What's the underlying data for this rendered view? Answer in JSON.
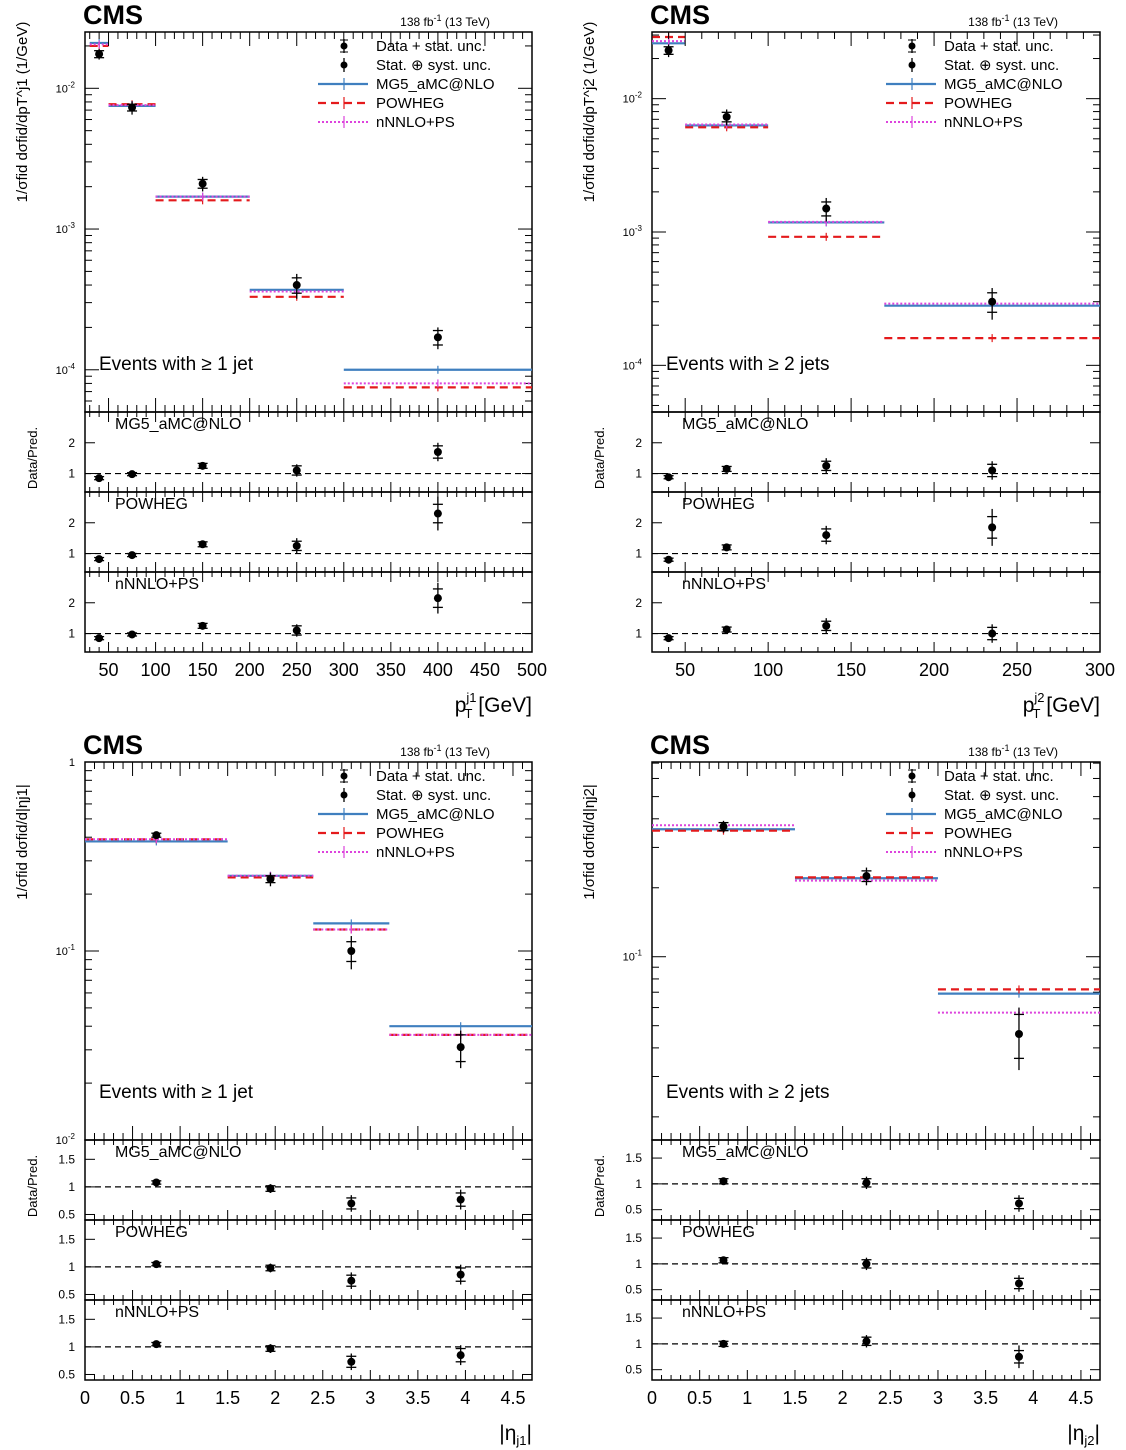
{
  "colors": {
    "data": "#000000",
    "mg5": "#3f7fbf",
    "powheg": "#e41a1c",
    "nnlo": "#dd44dd",
    "ratio_ref": "#000000"
  },
  "chart_data": [
    {
      "type": "scatter",
      "cms_label": "CMS",
      "lumi_main": "138 fb",
      "lumi_sup": "-1",
      "lumi_rest": " (13 TeV)",
      "annotation": "Events with ≥ 1 jet",
      "xlabel_main": "p",
      "xlabel_sup": "j1",
      "xlabel_sub": "T",
      "xlabel_unit": " [GeV]",
      "ylabel": "1/σfid dσfid/dpT^j1 (1/GeV)",
      "ratio_ylabel": "Data/Pred.",
      "xlim": [
        25,
        500
      ],
      "ylim_log": [
        -4.3,
        -1.6
      ],
      "x_ticks": [
        50,
        100,
        150,
        200,
        250,
        300,
        350,
        400,
        450,
        500
      ],
      "x_tick_labels": [
        "50",
        "100",
        "150",
        "200",
        "250",
        "300",
        "350",
        "400",
        "450",
        "500"
      ],
      "y_ticks": [
        {
          "exp": -4,
          "label": "10",
          "sup": "-4"
        },
        {
          "exp": -3,
          "label": "10",
          "sup": "-3"
        },
        {
          "exp": -2,
          "label": "10",
          "sup": "-2"
        }
      ],
      "bins": [
        [
          30,
          50
        ],
        [
          50,
          100
        ],
        [
          100,
          200
        ],
        [
          200,
          300
        ],
        [
          300,
          500
        ]
      ],
      "data": {
        "x": [
          40,
          75,
          150,
          250,
          400
        ],
        "y": [
          0.0175,
          0.0073,
          0.0021,
          0.0004,
          0.00017
        ],
        "stat": [
          0.001,
          0.0004,
          0.00015,
          5e-05,
          2e-05
        ],
        "tot": [
          0.0015,
          0.0008,
          0.00025,
          8e-05,
          3e-05
        ]
      },
      "predictions": [
        {
          "name": "MG5_aMC@NLO",
          "values": [
            0.021,
            0.0075,
            0.0017,
            0.00037,
            0.0001
          ]
        },
        {
          "name": "POWHEG",
          "values": [
            0.02,
            0.0077,
            0.0016,
            0.00033,
            7.5e-05
          ]
        },
        {
          "name": "nNNLO+PS",
          "values": [
            0.0205,
            0.0076,
            0.0017,
            0.00036,
            8e-05
          ]
        }
      ],
      "legend": [
        "Data + stat. unc.",
        "Stat. ⊕ syst. unc.",
        "MG5_aMC@NLO",
        "POWHEG",
        "nNNLO+PS"
      ],
      "ratio_ylim": [
        0.4,
        3.0
      ],
      "ratio_yticks": [
        1,
        2
      ],
      "ratios": [
        {
          "label": "MG5_aMC@NLO",
          "values": [
            0.85,
            0.98,
            1.25,
            1.1,
            1.7
          ],
          "stat": [
            0.05,
            0.05,
            0.08,
            0.15,
            0.2
          ],
          "tot": [
            0.07,
            0.08,
            0.12,
            0.2,
            0.3
          ]
        },
        {
          "label": "POWHEG",
          "values": [
            0.82,
            0.95,
            1.3,
            1.25,
            2.3
          ],
          "stat": [
            0.05,
            0.05,
            0.08,
            0.15,
            0.3
          ],
          "tot": [
            0.07,
            0.08,
            0.12,
            0.25,
            0.55
          ]
        },
        {
          "label": "nNNLO+PS",
          "values": [
            0.85,
            0.97,
            1.25,
            1.1,
            2.15
          ],
          "stat": [
            0.05,
            0.05,
            0.08,
            0.15,
            0.3
          ],
          "tot": [
            0.07,
            0.08,
            0.12,
            0.2,
            0.5
          ]
        }
      ]
    },
    {
      "type": "scatter",
      "cms_label": "CMS",
      "lumi_main": "138 fb",
      "lumi_sup": "-1",
      "lumi_rest": " (13 TeV)",
      "annotation": "Events with ≥ 2 jets",
      "xlabel_main": "p",
      "xlabel_sup": "j2",
      "xlabel_sub": "T",
      "xlabel_unit": " [GeV]",
      "ylabel": "1/σfid dσfid/dpT^j2 (1/GeV)",
      "ratio_ylabel": "Data/Pred.",
      "xlim": [
        30,
        300
      ],
      "ylim_log": [
        -4.35,
        -1.5
      ],
      "x_ticks": [
        50,
        100,
        150,
        200,
        250,
        300
      ],
      "x_tick_labels": [
        "50",
        "100",
        "150",
        "200",
        "250",
        "300"
      ],
      "y_ticks": [
        {
          "exp": -4,
          "label": "10",
          "sup": "-4"
        },
        {
          "exp": -3,
          "label": "10",
          "sup": "-3"
        },
        {
          "exp": -2,
          "label": "10",
          "sup": "-2"
        }
      ],
      "bins": [
        [
          30,
          50
        ],
        [
          50,
          100
        ],
        [
          100,
          170
        ],
        [
          170,
          300
        ]
      ],
      "data": {
        "x": [
          40,
          75,
          135,
          235
        ],
        "y": [
          0.023,
          0.0073,
          0.0015,
          0.0003
        ],
        "stat": [
          0.0015,
          0.0006,
          0.00018,
          5e-05
        ],
        "tot": [
          0.0025,
          0.001,
          0.0003,
          8e-05
        ]
      },
      "predictions": [
        {
          "name": "MG5_aMC@NLO",
          "values": [
            0.026,
            0.0063,
            0.00118,
            0.00028
          ]
        },
        {
          "name": "POWHEG",
          "values": [
            0.029,
            0.0061,
            0.00092,
            0.00016
          ]
        },
        {
          "name": "nNNLO+PS",
          "values": [
            0.027,
            0.0064,
            0.00119,
            0.00029
          ]
        }
      ],
      "legend": [
        "Data + stat. unc.",
        "Stat. ⊕ syst. unc.",
        "MG5_aMC@NLO",
        "POWHEG",
        "nNNLO+PS"
      ],
      "ratio_ylim": [
        0.4,
        3.0
      ],
      "ratio_yticks": [
        1,
        2
      ],
      "ratios": [
        {
          "label": "MG5_aMC@NLO",
          "values": [
            0.88,
            1.15,
            1.25,
            1.1
          ],
          "stat": [
            0.05,
            0.08,
            0.15,
            0.2
          ],
          "tot": [
            0.07,
            0.12,
            0.25,
            0.3
          ]
        },
        {
          "label": "POWHEG",
          "values": [
            0.8,
            1.2,
            1.6,
            1.85
          ],
          "stat": [
            0.05,
            0.08,
            0.2,
            0.35
          ],
          "tot": [
            0.07,
            0.12,
            0.3,
            0.6
          ]
        },
        {
          "label": "nNNLO+PS",
          "values": [
            0.85,
            1.13,
            1.25,
            1.0
          ],
          "stat": [
            0.05,
            0.08,
            0.15,
            0.2
          ],
          "tot": [
            0.07,
            0.12,
            0.25,
            0.3
          ]
        }
      ]
    },
    {
      "type": "scatter",
      "cms_label": "CMS",
      "lumi_main": "138 fb",
      "lumi_sup": "-1",
      "lumi_rest": " (13 TeV)",
      "annotation": "Events with ≥ 1 jet",
      "xlabel_main": "|η",
      "xlabel_sup": "",
      "xlabel_sub": "j1",
      "xlabel_unit": "|",
      "ylabel": "1/σfid dσfid/d|ηj1|",
      "ratio_ylabel": "Data/Pred.",
      "xlim": [
        0,
        4.7
      ],
      "ylim_log": [
        -2.0,
        0.0
      ],
      "x_ticks": [
        0,
        0.5,
        1,
        1.5,
        2,
        2.5,
        3,
        3.5,
        4,
        4.5
      ],
      "x_tick_labels": [
        "0",
        "0.5",
        "1",
        "1.5",
        "2",
        "2.5",
        "3",
        "3.5",
        "4",
        "4.5"
      ],
      "y_ticks": [
        {
          "exp": -2,
          "label": "10",
          "sup": "-2"
        },
        {
          "exp": -1,
          "label": "10",
          "sup": "-1"
        },
        {
          "exp": 0,
          "label": "1",
          "sup": ""
        }
      ],
      "bins": [
        [
          0,
          1.5
        ],
        [
          1.5,
          2.4
        ],
        [
          2.4,
          3.2
        ],
        [
          3.2,
          4.7
        ]
      ],
      "data": {
        "x": [
          0.75,
          1.95,
          2.8,
          3.95
        ],
        "y": [
          0.41,
          0.24,
          0.1,
          0.031
        ],
        "stat": [
          0.01,
          0.01,
          0.012,
          0.005
        ],
        "tot": [
          0.015,
          0.02,
          0.02,
          0.007
        ]
      },
      "predictions": [
        {
          "name": "MG5_aMC@NLO",
          "values": [
            0.38,
            0.25,
            0.14,
            0.04
          ]
        },
        {
          "name": "POWHEG",
          "values": [
            0.39,
            0.245,
            0.13,
            0.036
          ]
        },
        {
          "name": "nNNLO+PS",
          "values": [
            0.39,
            0.25,
            0.13,
            0.036
          ]
        }
      ],
      "legend": [
        "Data + stat. unc.",
        "Stat. ⊕ syst. unc.",
        "MG5_aMC@NLO",
        "POWHEG",
        "nNNLO+PS"
      ],
      "ratio_ylim": [
        0.4,
        1.85
      ],
      "ratio_yticks": [
        0.5,
        1,
        1.5
      ],
      "ratio_ytick_labels": [
        "0.5",
        "1",
        "1.5"
      ],
      "ratios": [
        {
          "label": "MG5_aMC@NLO",
          "values": [
            1.08,
            0.97,
            0.7,
            0.77
          ],
          "stat": [
            0.03,
            0.05,
            0.1,
            0.12
          ],
          "tot": [
            0.04,
            0.08,
            0.15,
            0.18
          ]
        },
        {
          "label": "POWHEG",
          "values": [
            1.05,
            0.98,
            0.75,
            0.86
          ],
          "stat": [
            0.03,
            0.05,
            0.1,
            0.12
          ],
          "tot": [
            0.04,
            0.08,
            0.15,
            0.18
          ]
        },
        {
          "label": "nNNLO+PS",
          "values": [
            1.05,
            0.97,
            0.73,
            0.85
          ],
          "stat": [
            0.03,
            0.05,
            0.1,
            0.12
          ],
          "tot": [
            0.04,
            0.08,
            0.15,
            0.18
          ]
        }
      ]
    },
    {
      "type": "scatter",
      "cms_label": "CMS",
      "lumi_main": "138 fb",
      "lumi_sup": "-1",
      "lumi_rest": " (13 TeV)",
      "annotation": "Events with ≥ 2 jets",
      "xlabel_main": "|η",
      "xlabel_sup": "",
      "xlabel_sub": "j2",
      "xlabel_unit": "|",
      "ylabel": "1/σfid dσfid/d|ηj2|",
      "ratio_ylabel": "Data/Pred.",
      "xlim": [
        0,
        4.7
      ],
      "ylim_log": [
        -1.8,
        -0.15
      ],
      "x_ticks": [
        0,
        0.5,
        1,
        1.5,
        2,
        2.5,
        3,
        3.5,
        4,
        4.5
      ],
      "x_tick_labels": [
        "0",
        "0.5",
        "1",
        "1.5",
        "2",
        "2.5",
        "3",
        "3.5",
        "4",
        "4.5"
      ],
      "y_ticks": [
        {
          "exp": -1,
          "label": "10",
          "sup": "-1"
        }
      ],
      "bins": [
        [
          0,
          1.5
        ],
        [
          1.5,
          3.0
        ],
        [
          3.0,
          4.7
        ]
      ],
      "data": {
        "x": [
          0.75,
          2.25,
          3.85
        ],
        "y": [
          0.37,
          0.225,
          0.046
        ],
        "stat": [
          0.015,
          0.012,
          0.01
        ],
        "tot": [
          0.022,
          0.02,
          0.014
        ]
      },
      "predictions": [
        {
          "name": "MG5_aMC@NLO",
          "values": [
            0.36,
            0.22,
            0.069
          ]
        },
        {
          "name": "POWHEG",
          "values": [
            0.355,
            0.222,
            0.072
          ]
        },
        {
          "name": "nNNLO+PS",
          "values": [
            0.375,
            0.215,
            0.057
          ]
        }
      ],
      "legend": [
        "Data + stat. unc.",
        "Stat. ⊕ syst. unc.",
        "MG5_aMC@NLO",
        "POWHEG",
        "nNNLO+PS"
      ],
      "ratio_ylim": [
        0.3,
        1.85
      ],
      "ratio_yticks": [
        0.5,
        1,
        1.5
      ],
      "ratio_ytick_labels": [
        "0.5",
        "1",
        "1.5"
      ],
      "ratios": [
        {
          "label": "MG5_aMC@NLO",
          "values": [
            1.05,
            1.02,
            0.62
          ],
          "stat": [
            0.05,
            0.08,
            0.1
          ],
          "tot": [
            0.07,
            0.12,
            0.16
          ]
        },
        {
          "label": "POWHEG",
          "values": [
            1.07,
            1.0,
            0.62
          ],
          "stat": [
            0.05,
            0.08,
            0.1
          ],
          "tot": [
            0.07,
            0.12,
            0.16
          ]
        },
        {
          "label": "nNNLO+PS",
          "values": [
            1.0,
            1.05,
            0.75
          ],
          "stat": [
            0.05,
            0.08,
            0.12
          ],
          "tot": [
            0.07,
            0.12,
            0.22
          ]
        }
      ]
    }
  ]
}
